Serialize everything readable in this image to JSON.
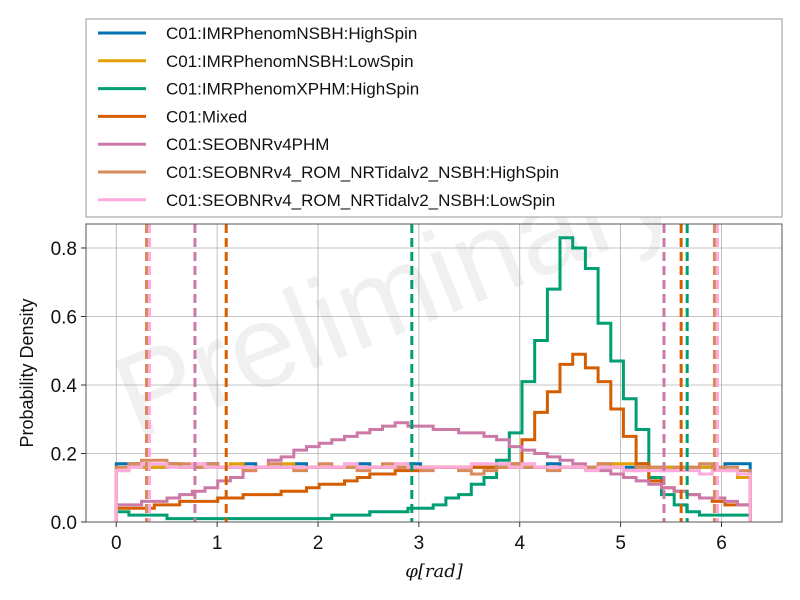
{
  "watermark": "Preliminary",
  "chart_data": {
    "type": "line",
    "title": "",
    "xlabel": "φ[rad]",
    "ylabel": "Probability Density",
    "xlim": [
      -0.3,
      6.6
    ],
    "ylim": [
      0,
      0.87
    ],
    "xticks": [
      0,
      1,
      2,
      3,
      4,
      5,
      6
    ],
    "yticks": [
      0.0,
      0.2,
      0.4,
      0.6,
      0.8
    ],
    "xtick_labels": [
      "0",
      "1",
      "2",
      "3",
      "4",
      "5",
      "6"
    ],
    "ytick_labels": [
      "0.0",
      "0.2",
      "0.4",
      "0.6",
      "0.8"
    ],
    "grid": true,
    "legend_position": "top (above plot)",
    "bin_start": 0.0,
    "bin_width": 0.1257,
    "series": [
      {
        "name": "C01:IMRPhenomNSBH:HighSpin",
        "color": "#0072b2",
        "values": [
          0.17,
          0.17,
          0.16,
          0.16,
          0.17,
          0.16,
          0.16,
          0.17,
          0.16,
          0.16,
          0.17,
          0.16,
          0.16,
          0.16,
          0.17,
          0.16,
          0.16,
          0.16,
          0.16,
          0.17,
          0.16,
          0.16,
          0.16,
          0.17,
          0.16,
          0.16,
          0.16,
          0.16,
          0.16,
          0.16,
          0.16,
          0.16,
          0.16,
          0.16,
          0.17,
          0.16,
          0.16,
          0.16,
          0.16,
          0.16,
          0.16,
          0.17,
          0.16,
          0.16,
          0.16,
          0.16,
          0.16,
          0.16,
          0.17,
          0.17
        ],
        "ci": []
      },
      {
        "name": "C01:IMRPhenomNSBH:LowSpin",
        "color": "#e69f00",
        "values": [
          0.15,
          0.16,
          0.16,
          0.16,
          0.17,
          0.16,
          0.16,
          0.16,
          0.16,
          0.17,
          0.16,
          0.16,
          0.16,
          0.17,
          0.16,
          0.16,
          0.16,
          0.16,
          0.16,
          0.16,
          0.16,
          0.16,
          0.16,
          0.16,
          0.16,
          0.16,
          0.16,
          0.16,
          0.16,
          0.16,
          0.16,
          0.16,
          0.16,
          0.16,
          0.16,
          0.16,
          0.16,
          0.16,
          0.17,
          0.17,
          0.17,
          0.16,
          0.16,
          0.16,
          0.16,
          0.16,
          0.16,
          0.16,
          0.15,
          0.13
        ],
        "ci": []
      },
      {
        "name": "C01:IMRPhenomXPHM:HighSpin",
        "color": "#009e73",
        "values": [
          0.03,
          0.02,
          0.02,
          0.02,
          0.01,
          0.01,
          0.01,
          0.01,
          0.01,
          0.01,
          0.01,
          0.01,
          0.01,
          0.01,
          0.01,
          0.01,
          0.01,
          0.02,
          0.02,
          0.02,
          0.03,
          0.03,
          0.03,
          0.04,
          0.04,
          0.05,
          0.07,
          0.08,
          0.11,
          0.13,
          0.18,
          0.26,
          0.41,
          0.53,
          0.68,
          0.83,
          0.8,
          0.74,
          0.58,
          0.47,
          0.36,
          0.27,
          0.13,
          0.08,
          0.05,
          0.03,
          0.02,
          0.02,
          0.02,
          0.02
        ],
        "ci": [
          2.93,
          5.66
        ]
      },
      {
        "name": "C01:Mixed",
        "color": "#d55e00",
        "values": [
          0.04,
          0.04,
          0.04,
          0.05,
          0.05,
          0.06,
          0.06,
          0.06,
          0.07,
          0.07,
          0.08,
          0.08,
          0.08,
          0.09,
          0.09,
          0.1,
          0.11,
          0.11,
          0.12,
          0.13,
          0.14,
          0.14,
          0.15,
          0.15,
          0.16,
          0.16,
          0.16,
          0.16,
          0.16,
          0.16,
          0.16,
          0.17,
          0.24,
          0.32,
          0.38,
          0.46,
          0.49,
          0.45,
          0.41,
          0.33,
          0.25,
          0.17,
          0.12,
          0.1,
          0.09,
          0.08,
          0.07,
          0.06,
          0.05,
          0.05
        ],
        "ci": [
          1.09,
          5.6
        ]
      },
      {
        "name": "C01:SEOBNRv4PHM",
        "color": "#cc79a7",
        "values": [
          0.05,
          0.05,
          0.06,
          0.06,
          0.07,
          0.08,
          0.09,
          0.1,
          0.12,
          0.13,
          0.15,
          0.16,
          0.18,
          0.19,
          0.21,
          0.22,
          0.23,
          0.24,
          0.25,
          0.26,
          0.27,
          0.28,
          0.29,
          0.28,
          0.28,
          0.27,
          0.27,
          0.26,
          0.26,
          0.25,
          0.24,
          0.22,
          0.21,
          0.2,
          0.19,
          0.18,
          0.17,
          0.16,
          0.15,
          0.14,
          0.13,
          0.12,
          0.11,
          0.1,
          0.09,
          0.08,
          0.07,
          0.07,
          0.06,
          0.05
        ],
        "ci": [
          0.78,
          5.43
        ]
      },
      {
        "name": "C01:SEOBNRv4_ROM_NRTidalv2_NSBH:HighSpin",
        "color": "#d98a5c",
        "values": [
          0.16,
          0.17,
          0.18,
          0.18,
          0.17,
          0.17,
          0.16,
          0.17,
          0.16,
          0.16,
          0.15,
          0.16,
          0.17,
          0.16,
          0.15,
          0.16,
          0.17,
          0.16,
          0.16,
          0.15,
          0.16,
          0.17,
          0.16,
          0.16,
          0.15,
          0.16,
          0.16,
          0.15,
          0.14,
          0.15,
          0.16,
          0.17,
          0.16,
          0.16,
          0.15,
          0.16,
          0.16,
          0.16,
          0.17,
          0.16,
          0.15,
          0.16,
          0.16,
          0.15,
          0.16,
          0.16,
          0.17,
          0.16,
          0.16,
          0.15
        ],
        "ci": [
          0.3,
          5.93
        ]
      },
      {
        "name": "C01:SEOBNRv4_ROM_NRTidalv2_NSBH:LowSpin",
        "color": "#ffaadd",
        "values": [
          0.15,
          0.16,
          0.17,
          0.17,
          0.16,
          0.16,
          0.17,
          0.16,
          0.16,
          0.16,
          0.16,
          0.16,
          0.16,
          0.16,
          0.16,
          0.16,
          0.16,
          0.16,
          0.17,
          0.16,
          0.16,
          0.16,
          0.17,
          0.16,
          0.16,
          0.16,
          0.16,
          0.16,
          0.17,
          0.17,
          0.17,
          0.16,
          0.17,
          0.16,
          0.16,
          0.16,
          0.16,
          0.15,
          0.16,
          0.16,
          0.15,
          0.15,
          0.15,
          0.15,
          0.15,
          0.15,
          0.14,
          0.15,
          0.15,
          0.14
        ],
        "ci": [
          0.33,
          5.96
        ]
      }
    ]
  }
}
